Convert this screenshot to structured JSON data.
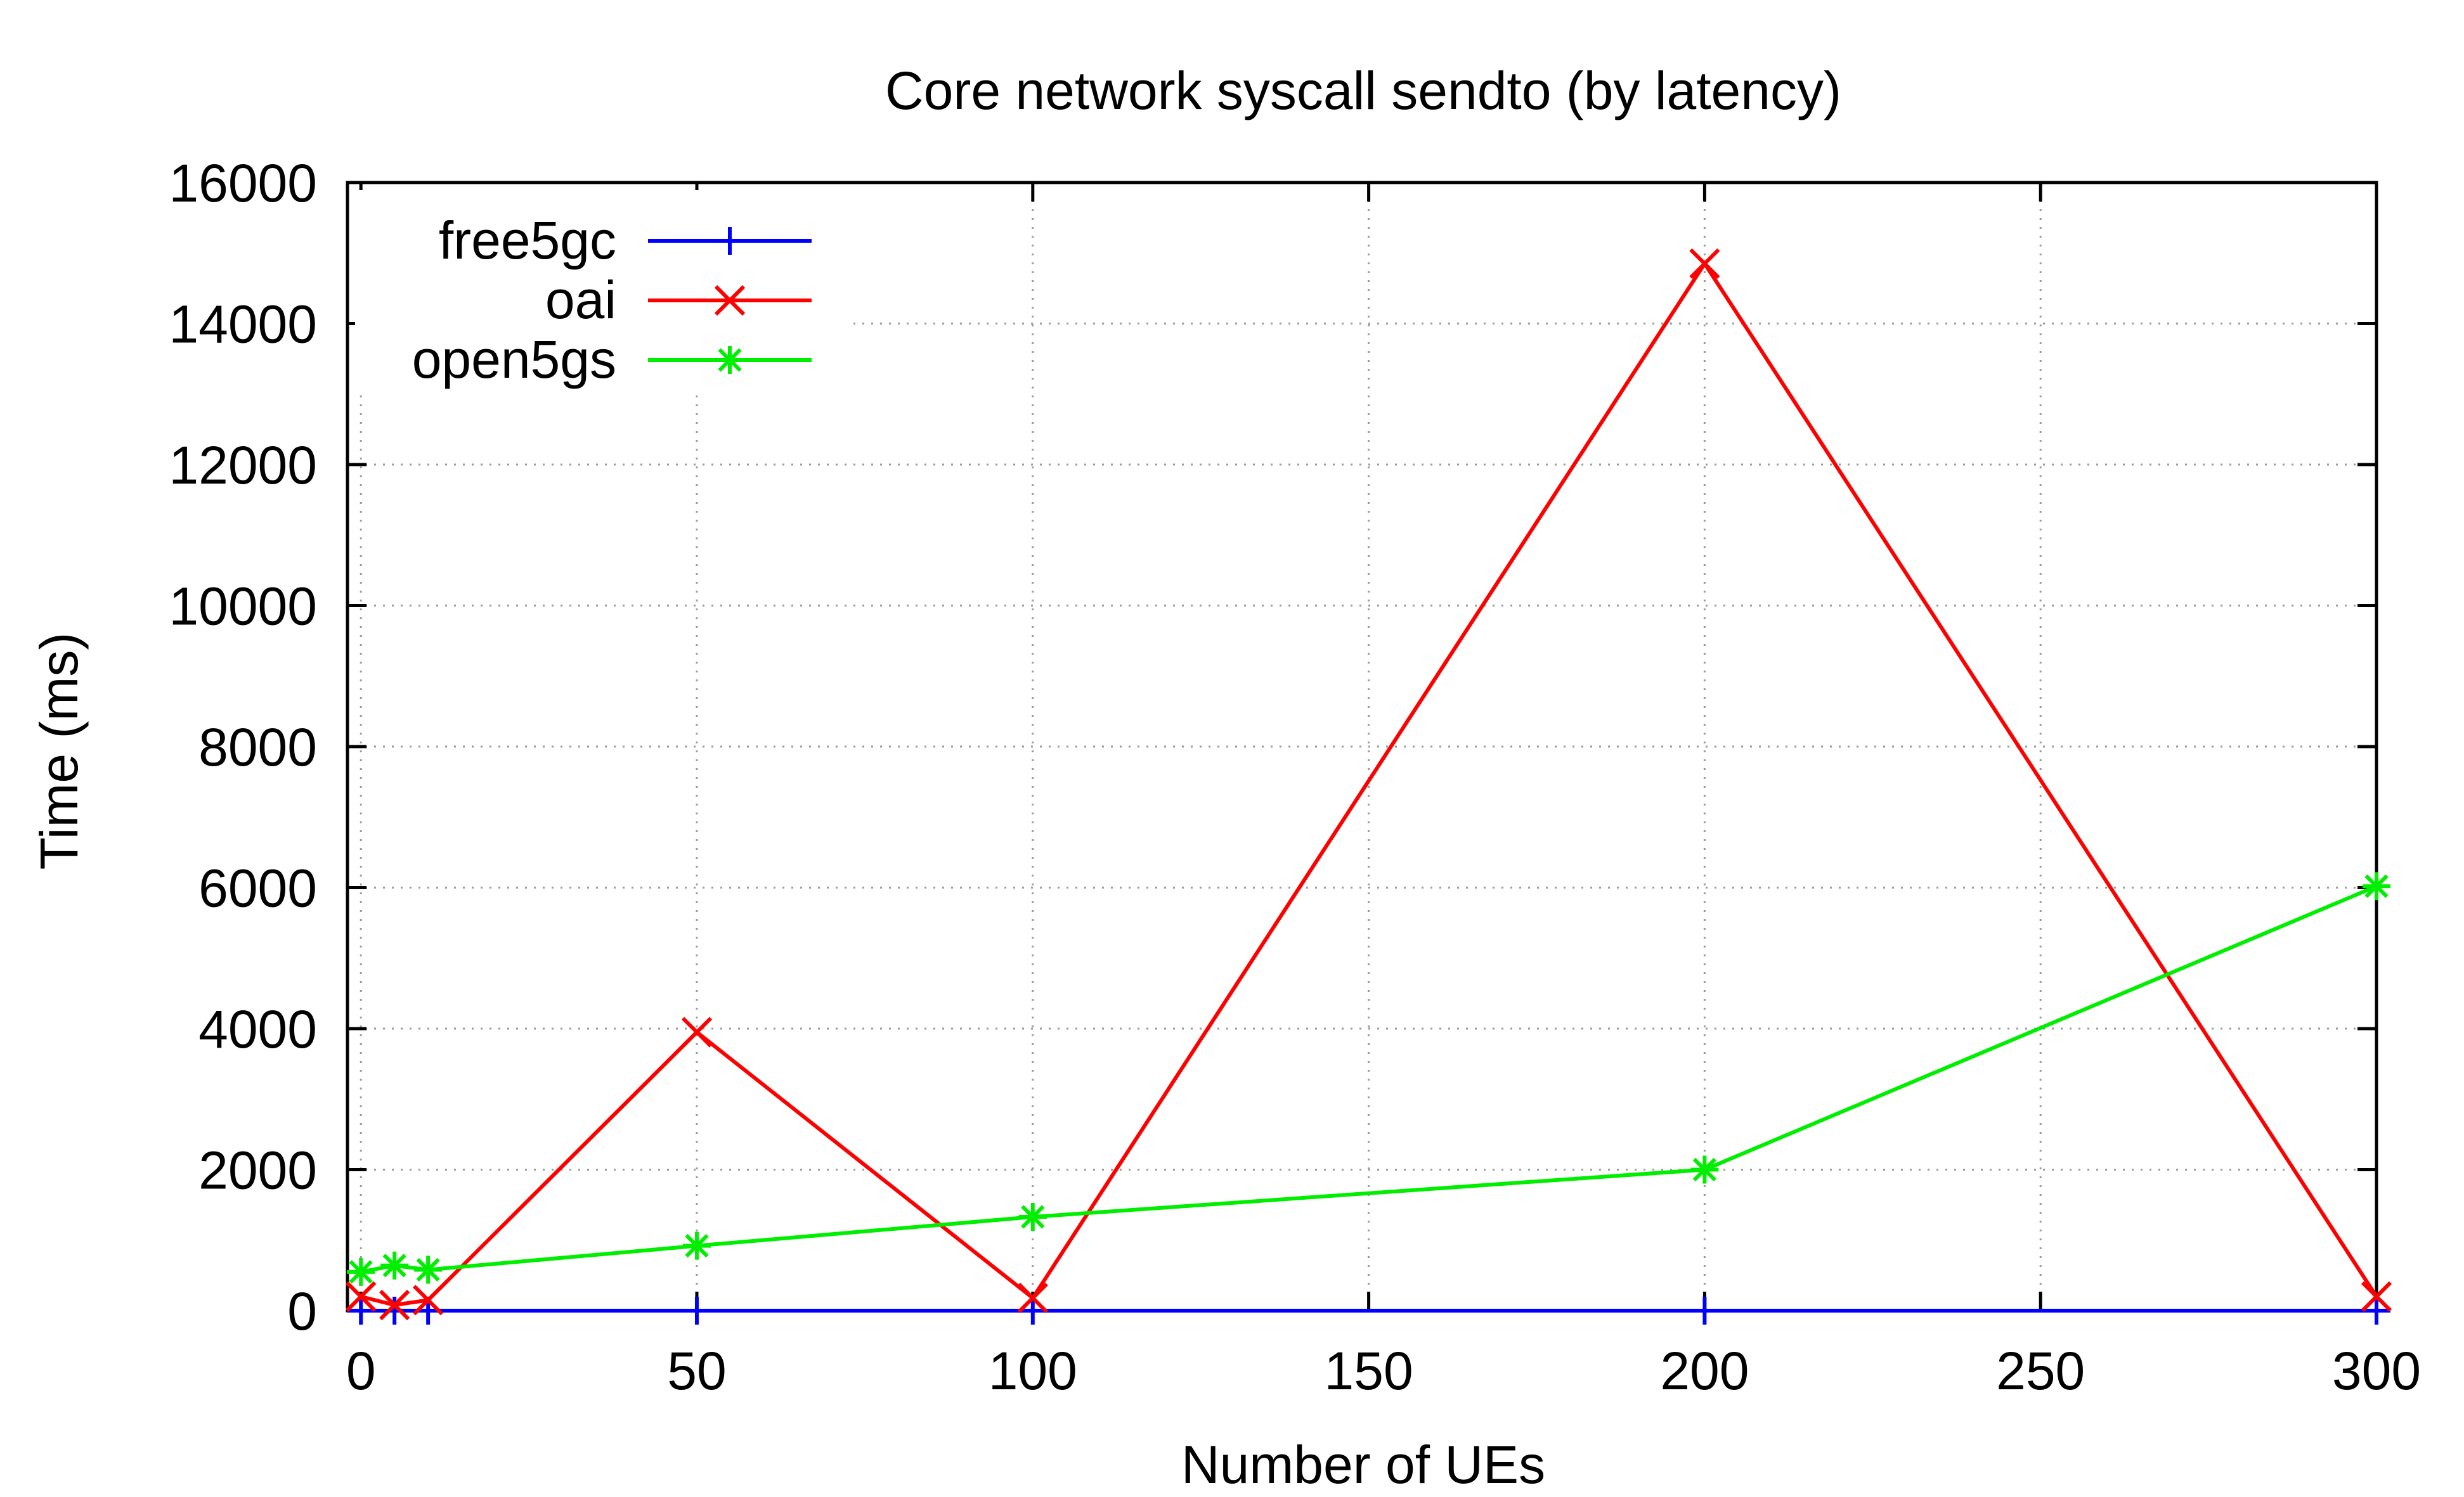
{
  "chart_data": {
    "type": "line",
    "title": "Core network syscall sendto (by latency)",
    "xlabel": "Number of UEs",
    "ylabel": "Time (ms)",
    "xlim": [
      -2,
      300
    ],
    "ylim": [
      0,
      16000
    ],
    "xticks": [
      0,
      50,
      100,
      150,
      200,
      250,
      300
    ],
    "yticks": [
      0,
      2000,
      4000,
      6000,
      8000,
      10000,
      12000,
      14000,
      16000
    ],
    "grid": true,
    "legend_position": "top-left",
    "series": [
      {
        "name": "free5gc",
        "color": "#0000ff",
        "marker": "plus",
        "x": [
          0,
          5,
          10,
          50,
          100,
          200,
          300
        ],
        "y": [
          0,
          0,
          0,
          0,
          0,
          0,
          0
        ]
      },
      {
        "name": "oai",
        "color": "#ff0000",
        "marker": "cross",
        "x": [
          0,
          5,
          10,
          50,
          100,
          200,
          300
        ],
        "y": [
          200,
          80,
          150,
          3950,
          180,
          14850,
          200
        ]
      },
      {
        "name": "open5gs",
        "color": "#00ee00",
        "marker": "star",
        "x": [
          0,
          5,
          10,
          50,
          100,
          200,
          300
        ],
        "y": [
          550,
          640,
          580,
          920,
          1330,
          2000,
          6020
        ]
      }
    ]
  }
}
